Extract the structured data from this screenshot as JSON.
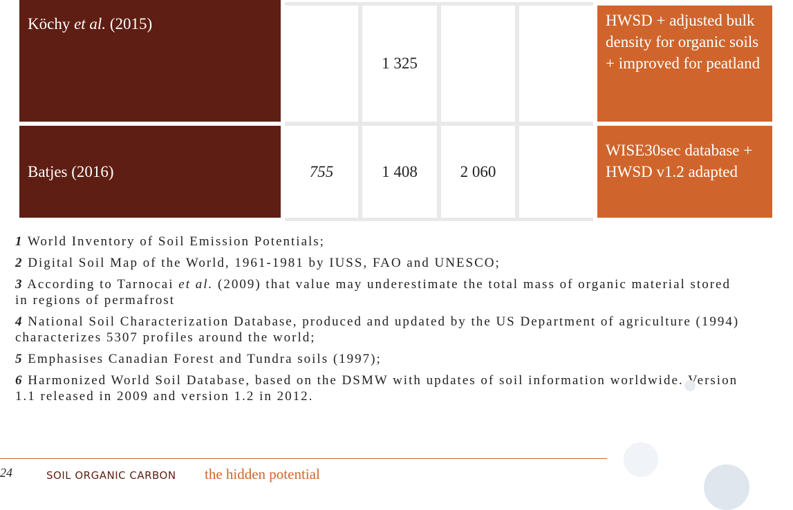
{
  "table": {
    "rows": [
      {
        "author": "Köchy",
        "author_italic": "et al.",
        "year": "(2015)",
        "values": [
          "",
          "1 325",
          "",
          ""
        ],
        "source": "HWSD + adjusted bulk density for organic soils + improved for peatland"
      },
      {
        "author": "Batjes (2016)",
        "author_italic": "",
        "year": "",
        "values": [
          "755",
          "1 408",
          "2 060",
          ""
        ],
        "source": "WISE30sec database + HWSD v1.2 adapted"
      }
    ]
  },
  "footnotes": [
    {
      "num": "1",
      "text": "World Inventory of Soil Emission Potentials;"
    },
    {
      "num": "2",
      "text": "Digital Soil Map of the World, 1961-1981 by IUSS, FAO and UNESCO;"
    },
    {
      "num": "3",
      "text": "According to Tarnocai ",
      "italic": "et al.",
      "text2": " (2009) that value may underestimate the total mass of organic material stored in regions of permafrost"
    },
    {
      "num": "4",
      "text": "National Soil Characterization Database, produced and updated by the US Department of agriculture (1994) characterizes 5307 profiles around the world;"
    },
    {
      "num": "5",
      "text": "Emphasises Canadian Forest and Tundra soils (1997);"
    },
    {
      "num": "6",
      "text": "Harmonized World Soil Database, based on the DSMW with updates of soil information worldwide. Version 1.1 released in 2009 and version 1.2 in 2012."
    }
  ],
  "footer": {
    "page_number": "24",
    "title": "SOIL ORGANIC CARBON",
    "subtitle": "the hidden potential"
  },
  "colors": {
    "brown": "#5e1e13",
    "orange": "#cf652c"
  }
}
